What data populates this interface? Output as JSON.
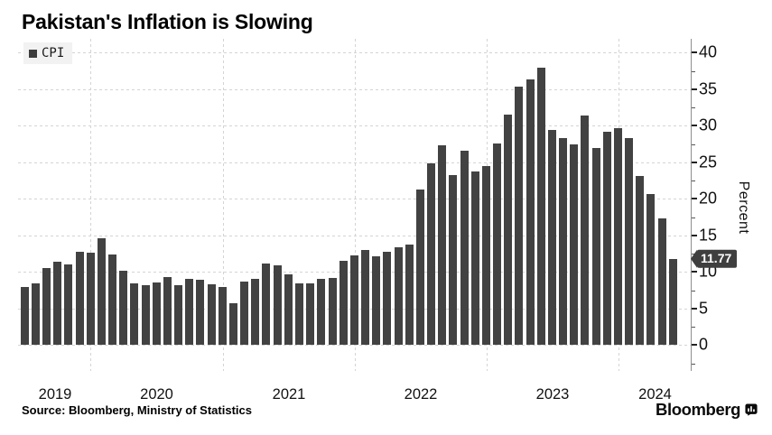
{
  "title": "Pakistan's Inflation is Slowing",
  "legend": {
    "cpi_label": "CPI",
    "swatch_color": "#3d3d3d"
  },
  "axis": {
    "y_tick_labels": [
      "0",
      "5",
      "10",
      "15",
      "20",
      "25",
      "30",
      "35",
      "40"
    ],
    "x_tick_labels": [
      "2019",
      "2020",
      "2021",
      "2022",
      "2023",
      "2024"
    ],
    "y_axis_title": "Percent"
  },
  "annotation": {
    "value_label": "11.77",
    "value": 11.77
  },
  "source_line": "Source: Bloomberg, Ministry of Statistics",
  "branding": {
    "wordmark": "Bloomberg",
    "icon": "bloomberg-chart-bubble-icon"
  },
  "colors": {
    "bar": "#424242",
    "badge_bg": "#3f3f3f",
    "badge_text": "#ffffff",
    "gridline": "#d4d4d4",
    "background": "#ffffff"
  },
  "chart_data": {
    "type": "bar",
    "title": "Pakistan's Inflation is Slowing",
    "xlabel": "",
    "ylabel": "Percent",
    "ylim": [
      0,
      40
    ],
    "grid": true,
    "legend_position": "top-left",
    "legend_entries": [
      "CPI"
    ],
    "series_name": "CPI",
    "x": [
      "2019-06",
      "2019-07",
      "2019-08",
      "2019-09",
      "2019-10",
      "2019-11",
      "2019-12",
      "2020-01",
      "2020-02",
      "2020-03",
      "2020-04",
      "2020-05",
      "2020-06",
      "2020-07",
      "2020-08",
      "2020-09",
      "2020-10",
      "2020-11",
      "2020-12",
      "2021-01",
      "2021-02",
      "2021-03",
      "2021-04",
      "2021-05",
      "2021-06",
      "2021-07",
      "2021-08",
      "2021-09",
      "2021-10",
      "2021-11",
      "2021-12",
      "2022-01",
      "2022-02",
      "2022-03",
      "2022-04",
      "2022-05",
      "2022-06",
      "2022-07",
      "2022-08",
      "2022-09",
      "2022-10",
      "2022-11",
      "2022-12",
      "2023-01",
      "2023-02",
      "2023-03",
      "2023-04",
      "2023-05",
      "2023-06",
      "2023-07",
      "2023-08",
      "2023-09",
      "2023-10",
      "2023-11",
      "2023-12",
      "2024-01",
      "2024-02",
      "2024-03",
      "2024-04",
      "2024-05"
    ],
    "values": [
      8.0,
      8.4,
      10.5,
      11.4,
      11.0,
      12.7,
      12.6,
      14.6,
      12.4,
      10.2,
      8.5,
      8.2,
      8.6,
      9.3,
      8.2,
      9.0,
      8.9,
      8.3,
      8.0,
      5.7,
      8.7,
      9.1,
      11.1,
      10.9,
      9.7,
      8.4,
      8.4,
      9.0,
      9.2,
      11.5,
      12.3,
      13.0,
      12.2,
      12.7,
      13.4,
      13.8,
      21.3,
      24.9,
      27.3,
      23.2,
      26.6,
      23.8,
      24.5,
      27.6,
      31.5,
      35.4,
      36.4,
      38.0,
      29.4,
      28.3,
      27.4,
      31.4,
      26.9,
      29.2,
      29.7,
      28.3,
      23.1,
      20.7,
      17.3,
      11.77
    ],
    "last_point_label": "11.77"
  }
}
